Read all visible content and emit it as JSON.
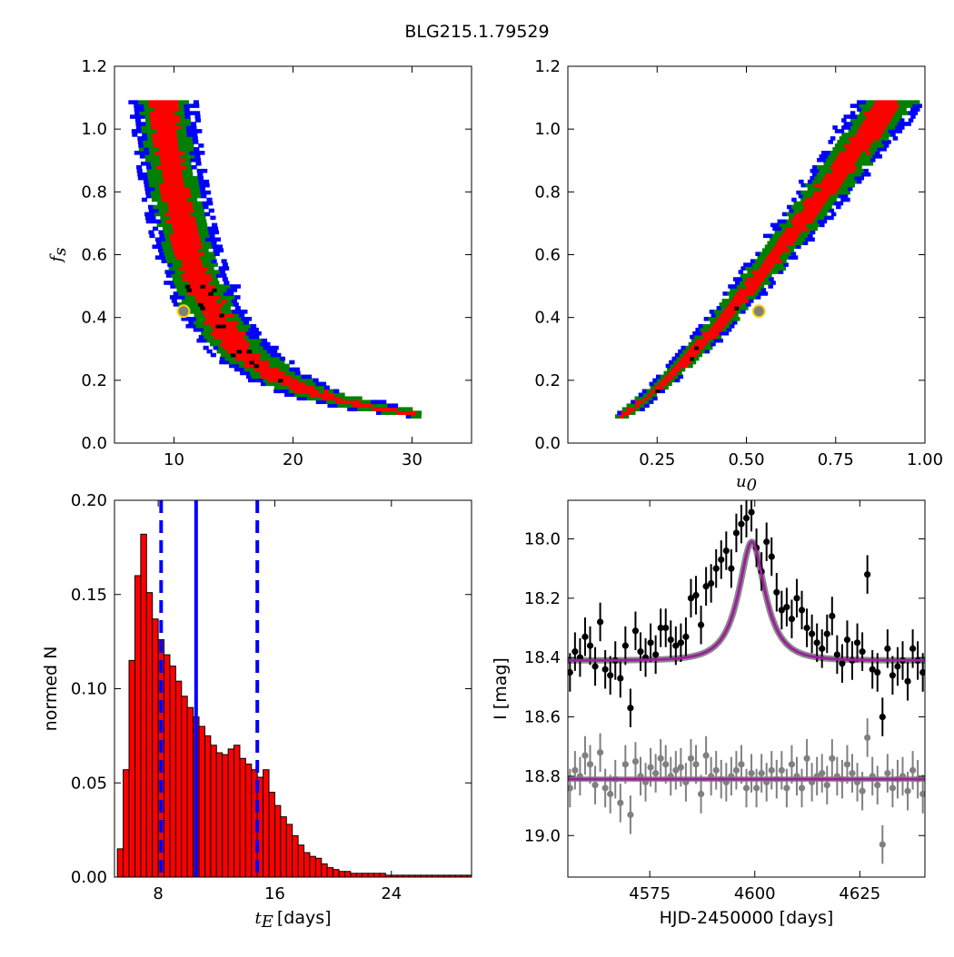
{
  "figure": {
    "title": "BLG215.1.79529"
  },
  "colors": {
    "level1": "#ff0000",
    "level2": "#008000",
    "level3": "#0000ff",
    "best": "#000000",
    "marker_fill": "#7f7f7f",
    "marker_edge": "#ffd700",
    "hist_fill": "#ff0000",
    "hist_edge": "#000000",
    "vline": "#0000ff",
    "model_fill": "#7f7f7f",
    "model_line": "#9b209b",
    "data_main": "#000000",
    "data_resid": "#808080"
  },
  "chart_data": [
    {
      "name": "tE-fs",
      "type": "heatmap",
      "xlabel": "",
      "ylabel": "f_s",
      "ylabel_parts": {
        "main": "f",
        "sub": "s"
      },
      "xlim": [
        5,
        35
      ],
      "ylim": [
        0,
        1.2
      ],
      "xticks": [
        "10",
        "20",
        "30"
      ],
      "xtick_values": [
        10,
        20,
        30
      ],
      "yticks": [
        "0.0",
        "0.2",
        "0.4",
        "0.6",
        "0.8",
        "1.0",
        "1.2"
      ],
      "ytick_values": [
        0,
        0.2,
        0.4,
        0.6,
        0.8,
        1.0,
        1.2
      ],
      "confidence_levels": [
        "level1",
        "level2",
        "level3"
      ],
      "banana": {
        "form": "fs * (tE - 4.6) ^ 1.4 = 8.2",
        "fs_range": [
          0.08,
          1.09
        ],
        "tE_max": 30.5
      },
      "best_fit": {
        "x": 10.8,
        "y": 0.42
      }
    },
    {
      "name": "u0-fs",
      "type": "heatmap",
      "xlabel": "u_0",
      "ylabel": "",
      "xlabel_parts": {
        "main": "u",
        "sub": "0"
      },
      "xlim": [
        0.0,
        1.0
      ],
      "ylim": [
        0,
        1.2
      ],
      "xticks": [
        "0.25",
        "0.50",
        "0.75",
        "1.00"
      ],
      "xtick_values": [
        0.25,
        0.5,
        0.75,
        1.0
      ],
      "yticks": [
        "0.0",
        "0.2",
        "0.4",
        "0.6",
        "0.8",
        "1.0",
        "1.2"
      ],
      "ytick_values": [
        0,
        0.2,
        0.4,
        0.6,
        0.8,
        1.0,
        1.2
      ],
      "banana": {
        "form": "u0 = 0.14 + 0.76 * ((fs - 0.08)/1.01) ^ 0.82",
        "fs_range": [
          0.08,
          1.09
        ]
      },
      "best_fit": {
        "x": 0.535,
        "y": 0.42
      }
    },
    {
      "name": "tE-histogram",
      "type": "bar",
      "xlabel": "t_E [days]",
      "ylabel": "normed N",
      "xlabel_parts": {
        "main": "t",
        "sub": "E",
        "rest": "[days]"
      },
      "xlim": [
        5.0,
        29.5
      ],
      "ylim": [
        0,
        0.2
      ],
      "xticks": [
        "8",
        "16",
        "24"
      ],
      "xtick_values": [
        8,
        16,
        24
      ],
      "yticks": [
        "0.00",
        "0.05",
        "0.10",
        "0.15",
        "0.20"
      ],
      "ytick_values": [
        0,
        0.05,
        0.1,
        0.15,
        0.2
      ],
      "bin_start": 5.2,
      "bin_width": 0.4,
      "values": [
        0.015,
        0.057,
        0.115,
        0.16,
        0.182,
        0.151,
        0.137,
        0.126,
        0.118,
        0.112,
        0.104,
        0.096,
        0.09,
        0.085,
        0.08,
        0.075,
        0.07,
        0.066,
        0.065,
        0.068,
        0.07,
        0.063,
        0.06,
        0.057,
        0.053,
        0.057,
        0.045,
        0.038,
        0.032,
        0.028,
        0.022,
        0.017,
        0.013,
        0.011,
        0.01,
        0.007,
        0.005,
        0.004,
        0.003,
        0.003,
        0.002,
        0.002,
        0.002,
        0.002,
        0.002,
        0.002,
        0.001,
        0.001,
        0.001,
        0.001,
        0.001,
        0.001,
        0.001,
        0.001,
        0.001,
        0.001,
        0.001,
        0.001,
        0.001,
        0.001,
        0.001
      ],
      "vlines": [
        {
          "x": 8.2,
          "style": "dashed"
        },
        {
          "x": 10.6,
          "style": "solid"
        },
        {
          "x": 14.8,
          "style": "dashed"
        }
      ]
    },
    {
      "name": "light-curve",
      "type": "scatter",
      "xlabel": "HJD-2450000 [days]",
      "ylabel": "I [mag]",
      "xlim": [
        4555.5,
        4640.5
      ],
      "ylim": [
        19.14,
        17.87
      ],
      "y_inverted": true,
      "xticks": [
        "4575",
        "4600",
        "4625"
      ],
      "xtick_values": [
        4575,
        4600,
        4625
      ],
      "yticks": [
        "18.0",
        "18.2",
        "18.4",
        "18.6",
        "18.8",
        "19.0"
      ],
      "ytick_values": [
        18.0,
        18.2,
        18.4,
        18.6,
        18.8,
        19.0
      ],
      "model": {
        "form": "paczynski",
        "baseline_mag": 18.41,
        "peak_mag": 18.01,
        "t0": 4599.3,
        "tE": 6.2,
        "u0": 0.535
      },
      "residual_baseline": 18.81,
      "series": [
        {
          "name": "",
          "role": "data",
          "x": [
            4556.0,
            4557.2,
            4558.4,
            4559.6,
            4560.8,
            4562.0,
            4563.2,
            4564.4,
            4565.6,
            4566.8,
            4568.0,
            4569.2,
            4570.4,
            4571.6,
            4572.8,
            4574.0,
            4575.2,
            4576.4,
            4577.6,
            4578.8,
            4580.0,
            4581.2,
            4582.4,
            4583.6,
            4584.8,
            4586.0,
            4587.2,
            4588.4,
            4589.6,
            4590.8,
            4592.0,
            4593.2,
            4594.4,
            4595.6,
            4596.8,
            4598.0,
            4599.2,
            4600.4,
            4601.6,
            4602.8,
            4604.0,
            4605.2,
            4606.4,
            4607.6,
            4608.8,
            4610.0,
            4611.2,
            4612.4,
            4613.6,
            4614.8,
            4616.0,
            4617.2,
            4618.4,
            4619.6,
            4620.8,
            4622.0,
            4623.2,
            4624.4,
            4625.6,
            4626.8,
            4628.0,
            4629.2,
            4630.4,
            4631.6,
            4632.8,
            4634.0,
            4635.2,
            4636.4,
            4637.6,
            4638.8,
            4640.0
          ],
          "y": [
            18.45,
            18.38,
            18.4,
            18.33,
            18.36,
            18.43,
            18.28,
            18.44,
            18.46,
            18.41,
            18.47,
            18.36,
            18.57,
            18.31,
            18.38,
            18.4,
            18.35,
            18.39,
            18.3,
            18.3,
            18.34,
            18.36,
            18.35,
            18.33,
            18.2,
            18.19,
            18.29,
            18.16,
            18.15,
            18.1,
            18.07,
            18.04,
            18.1,
            17.98,
            17.95,
            17.93,
            17.91,
            18.03,
            18.11,
            18.01,
            18.06,
            18.18,
            18.24,
            18.23,
            18.27,
            18.2,
            18.24,
            18.3,
            18.32,
            18.35,
            18.37,
            18.32,
            18.26,
            18.39,
            18.42,
            18.34,
            18.41,
            18.35,
            18.38,
            18.12,
            18.44,
            18.45,
            18.6,
            18.37,
            18.46,
            18.43,
            18.41,
            18.48,
            18.37,
            18.41,
            18.45
          ],
          "err": 0.065
        },
        {
          "name": "",
          "role": "residuals",
          "x": [
            4556.0,
            4557.2,
            4558.4,
            4559.6,
            4560.8,
            4562.0,
            4563.2,
            4564.4,
            4565.6,
            4566.8,
            4568.0,
            4569.2,
            4570.4,
            4571.6,
            4572.8,
            4574.0,
            4575.2,
            4576.4,
            4577.6,
            4578.8,
            4580.0,
            4581.2,
            4582.4,
            4583.6,
            4584.8,
            4586.0,
            4587.2,
            4588.4,
            4589.6,
            4590.8,
            4592.0,
            4593.2,
            4594.4,
            4595.6,
            4596.8,
            4598.0,
            4599.2,
            4600.4,
            4601.6,
            4602.8,
            4604.0,
            4605.2,
            4606.4,
            4607.6,
            4608.8,
            4610.0,
            4611.2,
            4612.4,
            4613.6,
            4614.8,
            4616.0,
            4617.2,
            4618.4,
            4619.6,
            4620.8,
            4622.0,
            4623.2,
            4624.4,
            4625.6,
            4626.8,
            4628.0,
            4629.2,
            4630.4,
            4631.6,
            4632.8,
            4634.0,
            4635.2,
            4636.4,
            4637.6,
            4638.8,
            4640.0
          ],
          "y": [
            18.84,
            18.78,
            18.8,
            18.73,
            18.76,
            18.83,
            18.72,
            18.84,
            18.86,
            18.81,
            18.89,
            18.76,
            18.93,
            18.75,
            18.8,
            18.82,
            18.77,
            18.79,
            18.74,
            18.76,
            18.8,
            18.78,
            18.77,
            18.82,
            18.74,
            18.76,
            18.86,
            18.73,
            18.8,
            18.78,
            18.81,
            18.82,
            18.8,
            18.78,
            18.76,
            18.84,
            18.79,
            18.84,
            18.79,
            18.82,
            18.78,
            18.81,
            18.78,
            18.84,
            18.76,
            18.8,
            18.84,
            18.74,
            18.82,
            18.8,
            18.79,
            18.83,
            18.74,
            18.8,
            18.81,
            18.76,
            18.79,
            18.82,
            18.85,
            18.67,
            18.8,
            18.83,
            19.03,
            18.79,
            18.84,
            18.81,
            18.8,
            18.85,
            18.78,
            18.81,
            18.86
          ],
          "err": 0.065
        }
      ]
    }
  ]
}
